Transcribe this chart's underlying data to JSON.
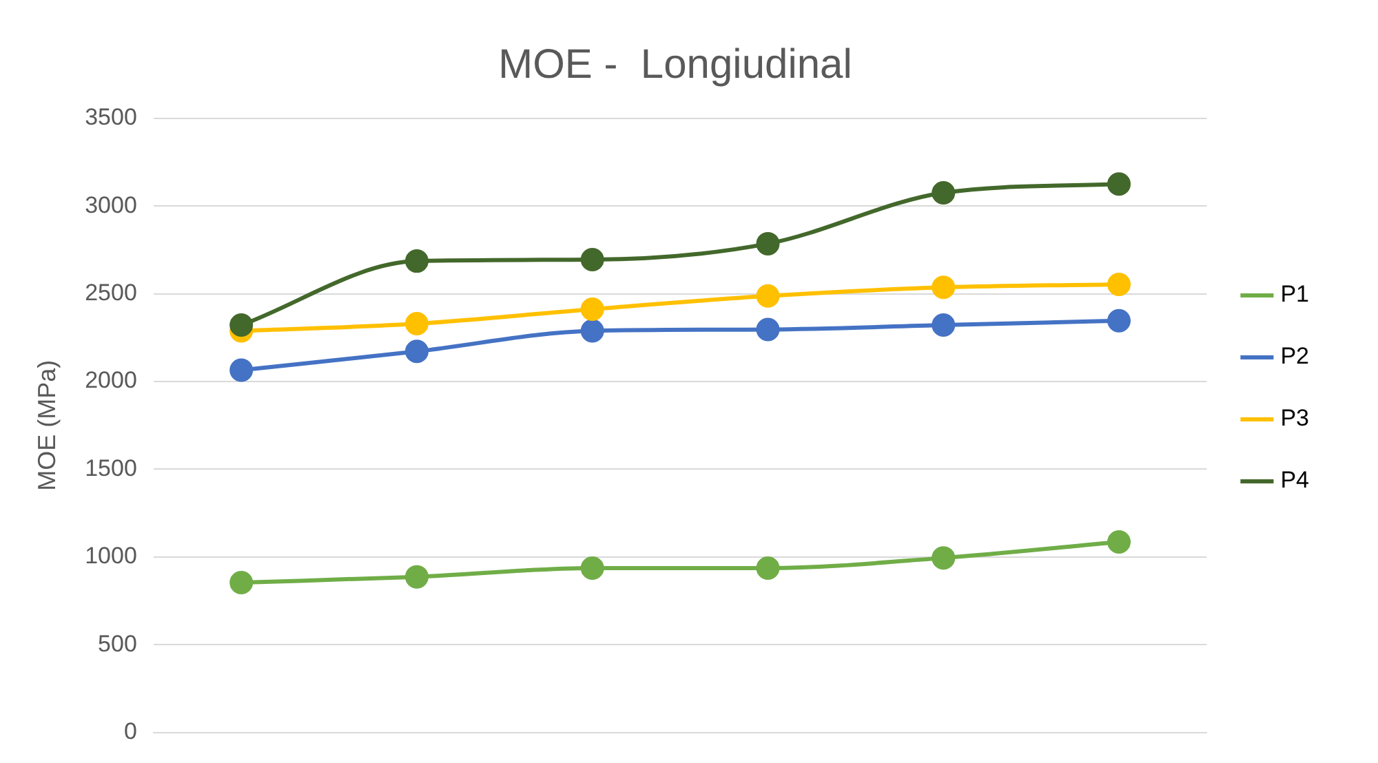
{
  "chart_data": {
    "type": "line",
    "title": "MOE -  Longiudinal",
    "ylabel": "MOE (MPa)",
    "categories": [
      null,
      null,
      null,
      null,
      null,
      null
    ],
    "series": [
      {
        "name": "P1",
        "color": "#70ad47",
        "values": [
          854,
          887,
          937,
          937,
          995,
          1086
        ]
      },
      {
        "name": "P2",
        "color": "#4472c4",
        "values": [
          2065,
          2172,
          2289,
          2297,
          2322,
          2347
        ]
      },
      {
        "name": "P3",
        "color": "#ffc000",
        "values": [
          2289,
          2330,
          2413,
          2488,
          2537,
          2554
        ]
      },
      {
        "name": "P4",
        "color": "#43682b",
        "values": [
          2322,
          2687,
          2695,
          2786,
          3076,
          3126
        ]
      }
    ],
    "ylim": [
      0,
      3500
    ],
    "yticks": [
      0,
      500,
      1000,
      1500,
      2000,
      2500,
      3000,
      3500
    ],
    "grid": "y",
    "legend": "right",
    "marker": "circle",
    "line_style": "solid",
    "tick_labels": "y"
  }
}
